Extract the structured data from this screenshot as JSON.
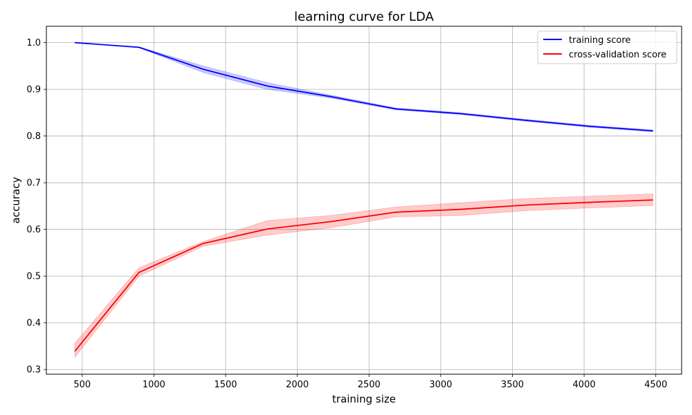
{
  "chart_data": {
    "type": "line",
    "title": "learning curve for LDA",
    "xlabel": "training size",
    "ylabel": "accuracy",
    "xlim": [
      250,
      4680
    ],
    "ylim": [
      0.29,
      1.035
    ],
    "xticks": [
      500,
      1000,
      1500,
      2000,
      2500,
      3000,
      3500,
      4000,
      4500
    ],
    "yticks": [
      0.3,
      0.4,
      0.5,
      0.6,
      0.7,
      0.8,
      0.9,
      1.0
    ],
    "xtick_labels": [
      "500",
      "1000",
      "1500",
      "2000",
      "2500",
      "3000",
      "3500",
      "4000",
      "4500"
    ],
    "ytick_labels": [
      "0.3",
      "0.4",
      "0.5",
      "0.6",
      "0.7",
      "0.8",
      "0.9",
      "1.0"
    ],
    "grid": true,
    "legend_position": "top-right",
    "x": [
      448,
      896,
      1344,
      1792,
      2240,
      2688,
      3136,
      3584,
      4032,
      4480
    ],
    "series": [
      {
        "name": "training score",
        "color": "#0000ff",
        "band_color": "#0000ff",
        "values": [
          1.0,
          0.99,
          0.943,
          0.907,
          0.884,
          0.858,
          0.848,
          0.834,
          0.821,
          0.811
        ],
        "lower": [
          1.0,
          0.989,
          0.936,
          0.9,
          0.881,
          0.856,
          0.846,
          0.832,
          0.819,
          0.809
        ],
        "upper": [
          1.0,
          0.991,
          0.95,
          0.914,
          0.887,
          0.86,
          0.85,
          0.836,
          0.823,
          0.813
        ]
      },
      {
        "name": "cross-validation score",
        "color": "#ff0000",
        "band_color": "#ff0000",
        "values": [
          0.339,
          0.508,
          0.57,
          0.601,
          0.617,
          0.637,
          0.643,
          0.652,
          0.658,
          0.663
        ],
        "lower": [
          0.326,
          0.5,
          0.564,
          0.588,
          0.604,
          0.627,
          0.63,
          0.64,
          0.646,
          0.651
        ],
        "upper": [
          0.356,
          0.518,
          0.574,
          0.619,
          0.63,
          0.648,
          0.657,
          0.666,
          0.671,
          0.676
        ]
      }
    ]
  }
}
